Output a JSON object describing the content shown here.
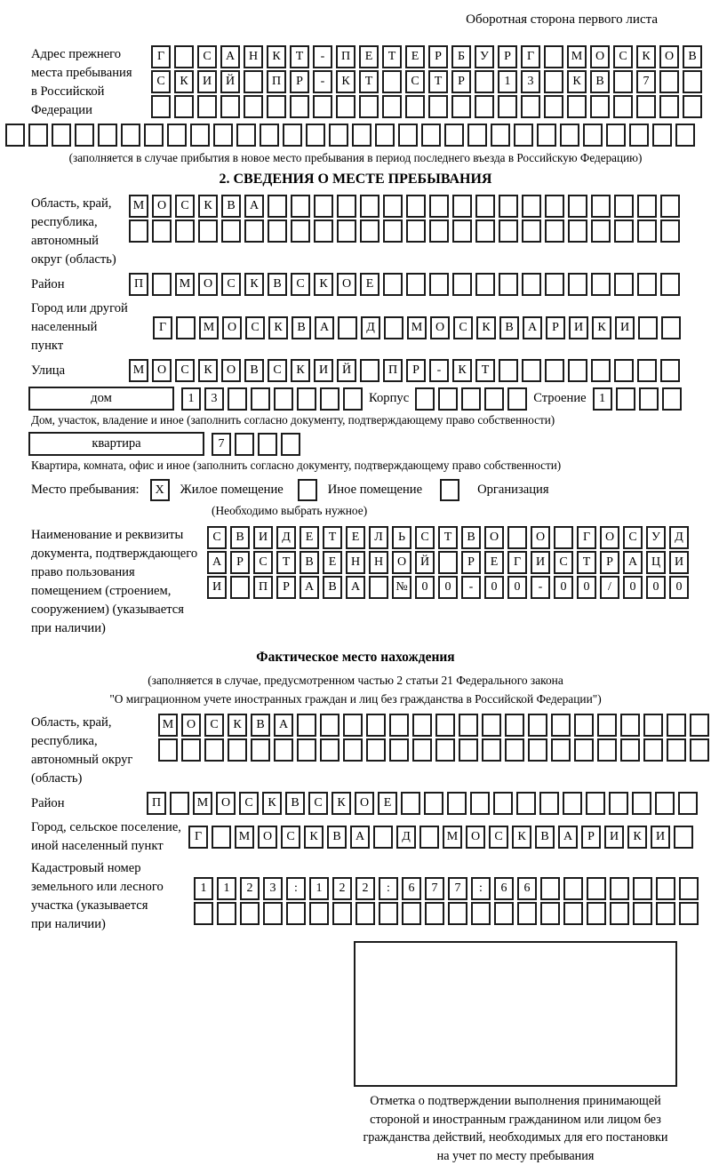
{
  "page": {
    "back_note": "Оборотная сторона первого листа"
  },
  "prev_address": {
    "label_lines": [
      "Адрес прежнего",
      "места пребывания",
      "в Российской",
      "Федерации"
    ],
    "rows": [
      "Г САНКТ-ПЕТЕРБУРГ МОСКОВ",
      "СКИЙ ПР-КТ СТР 13 КВ 7  ",
      "                        "
    ],
    "full_row": "                              ",
    "caption": "(заполняется в случае прибытия в новое место пребывания в период последнего въезда в Российскую Федерацию)"
  },
  "section2": {
    "title": "2. СВЕДЕНИЯ О МЕСТЕ ПРЕБЫВАНИЯ",
    "oblast": {
      "label_lines": [
        "Область, край,",
        "республика,",
        "автономный",
        "округ (область)"
      ],
      "rows": [
        "МОСКВА                  ",
        "                        "
      ]
    },
    "rayon": {
      "label": "Район",
      "row": "П МОСКВСКОЕ             "
    },
    "gorod": {
      "label_lines": [
        "Город или другой",
        "населенный пункт"
      ],
      "row": "Г МОСКВА Д МОСКВАРИКИ  "
    },
    "ulitsa": {
      "label": "Улица",
      "row": "МОСКОВСКИЙ ПР-КТ        "
    },
    "dom": {
      "box_label": "дом",
      "cells": "13      ",
      "korpus_label": "Корпус",
      "korpus_cells": "     ",
      "stroenie_label": "Строение",
      "stroenie_cells": "1   ",
      "caption": "Дом, участок, владение и иное (заполнить согласно документу, подтверждающему право собственности)"
    },
    "kvartira": {
      "box_label": "квартира",
      "cells": "7   ",
      "caption": "Квартира, комната, офис и иное (заполнить согласно документу, подтверждающему право собственности)"
    },
    "mesto": {
      "label": "Место пребывания:",
      "options": [
        {
          "label": "Жилое помещение",
          "mark": "X"
        },
        {
          "label": "Иное помещение",
          "mark": ""
        },
        {
          "label": "Организация",
          "mark": ""
        }
      ],
      "note": "(Необходимо выбрать нужное)"
    },
    "document": {
      "label_lines": [
        "Наименование и реквизиты",
        "документа, подтверждающего",
        "право пользования",
        "помещением (строением,",
        "сооружением) (указывается",
        "при наличии)"
      ],
      "rows": [
        "СВИДЕТЕЛЬСТВО О ГОСУД",
        "АРСТВЕННОЙ РЕГИСТРАЦИ",
        "И ПРАВА №00-00-00/000"
      ]
    }
  },
  "fact_location": {
    "title": "Фактическое место нахождения",
    "subtitle_lines": [
      "(заполняется в случае, предусмотренном частью 2 статьи 21 Федерального закона",
      "\"О миграционном учете иностранных граждан и лиц без гражданства в Российской Федерации\")"
    ],
    "oblast": {
      "label_lines": [
        "Область, край,",
        "республика,",
        "автономный округ",
        "(область)"
      ],
      "rows": [
        "МОСКВА                  ",
        "                        "
      ]
    },
    "rayon": {
      "label": "Район",
      "row": "П МОСКВСКОЕ             "
    },
    "gorod": {
      "label_lines": [
        "Город, сельское поселение,",
        "иной населенный пункт"
      ],
      "row": "Г МОСКВА Д МОСКВАРИКИ "
    },
    "kadastr": {
      "label_lines": [
        "Кадастровый номер",
        "земельного или лесного",
        "участка (указывается",
        "при наличии)"
      ],
      "rows": [
        "1123:122:677:66       ",
        "                      "
      ]
    }
  },
  "stamp": {
    "caption_lines": [
      "Отметка о подтверждении выполнения принимающей",
      "стороной и иностранным гражданином или лицом без",
      "гражданства действий, необходимых для его постановки",
      "на учет по месту пребывания"
    ]
  }
}
